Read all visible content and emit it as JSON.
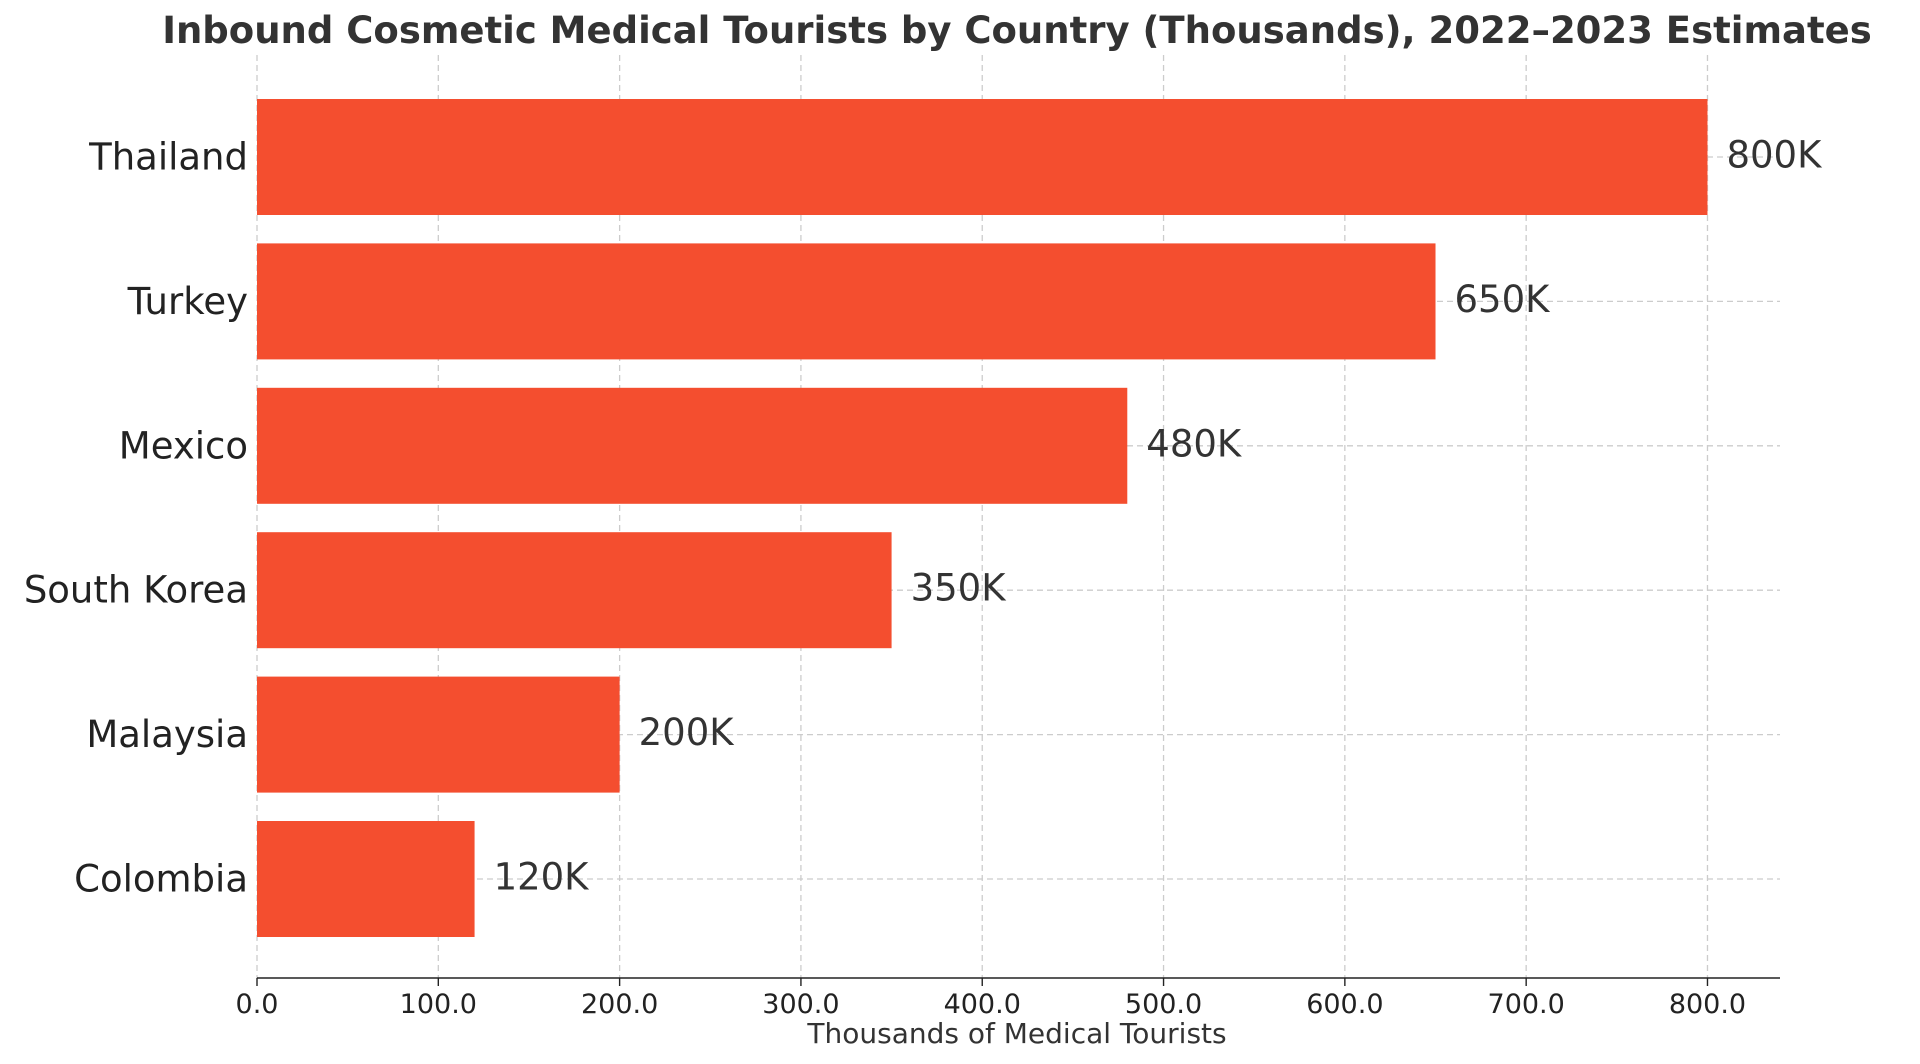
{
  "chart_data": {
    "type": "bar",
    "orientation": "horizontal",
    "title": "Inbound Cosmetic Medical Tourists by Country (Thousands), 2022–2023 Estimates",
    "xlabel": "Thousands of Medical Tourists",
    "ylabel": "",
    "categories": [
      "Thailand",
      "Turkey",
      "Mexico",
      "South Korea",
      "Malaysia",
      "Colombia"
    ],
    "values": [
      800,
      650,
      480,
      350,
      200,
      120
    ],
    "value_labels": [
      "800K",
      "650K",
      "480K",
      "350K",
      "200K",
      "120K"
    ],
    "xlim": [
      0,
      840
    ],
    "xticks": [
      0,
      100,
      200,
      300,
      400,
      500,
      600,
      700,
      800
    ],
    "xtick_labels": [
      "0.0",
      "100.0",
      "200.0",
      "300.0",
      "400.0",
      "500.0",
      "600.0",
      "700.0",
      "800.0"
    ],
    "grid": true,
    "bar_color": "#f44e2f",
    "text_color": "#333333"
  }
}
